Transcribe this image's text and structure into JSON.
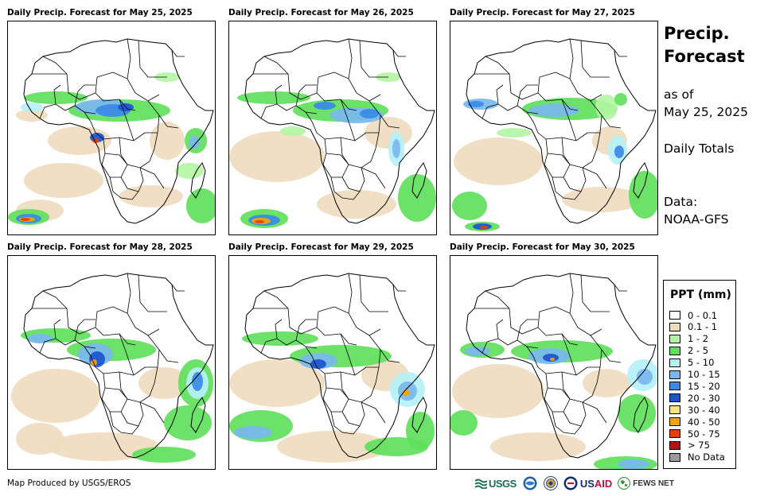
{
  "panels": [
    {
      "title": "Daily Precip. Forecast for May 25, 2025"
    },
    {
      "title": "Daily Precip. Forecast for May 26, 2025"
    },
    {
      "title": "Daily Precip. Forecast for May 27, 2025"
    },
    {
      "title": "Daily Precip. Forecast for May 28, 2025"
    },
    {
      "title": "Daily Precip. Forecast for May 29, 2025"
    },
    {
      "title": "Daily Precip. Forecast for May 30, 2025"
    }
  ],
  "sidebar": {
    "title_line1": "Precip.",
    "title_line2": "Forecast",
    "asof_line1": "as of",
    "asof_line2": "May 25, 2025",
    "totals": "Daily Totals",
    "data_line1": "Data:",
    "data_line2": "NOAA-GFS"
  },
  "legend": {
    "title": "PPT (mm)",
    "items": [
      {
        "label": "0 - 0.1",
        "color": "#ffffff"
      },
      {
        "label": "0.1 - 1",
        "color": "#efdcbf"
      },
      {
        "label": "1 - 2",
        "color": "#b4f5a4"
      },
      {
        "label": "2 - 5",
        "color": "#5fe05c"
      },
      {
        "label": "5 - 10",
        "color": "#b5f0f7"
      },
      {
        "label": "10 - 15",
        "color": "#7ab8f0"
      },
      {
        "label": "15 - 20",
        "color": "#3a8ae6"
      },
      {
        "label": "20 - 30",
        "color": "#1c54d0"
      },
      {
        "label": "30 - 40",
        "color": "#f7e08a"
      },
      {
        "label": "40 - 50",
        "color": "#f5a300"
      },
      {
        "label": "50 - 75",
        "color": "#f03c00"
      },
      {
        "label": "> 75",
        "color": "#b01414"
      },
      {
        "label": "No Data",
        "color": "#999999"
      }
    ]
  },
  "footer": {
    "credit": "Map Produced by USGS/EROS",
    "usgs": "USGS",
    "usaid_prefix": "US",
    "usaid_suffix": "AID",
    "fews": "FEWS NET"
  }
}
